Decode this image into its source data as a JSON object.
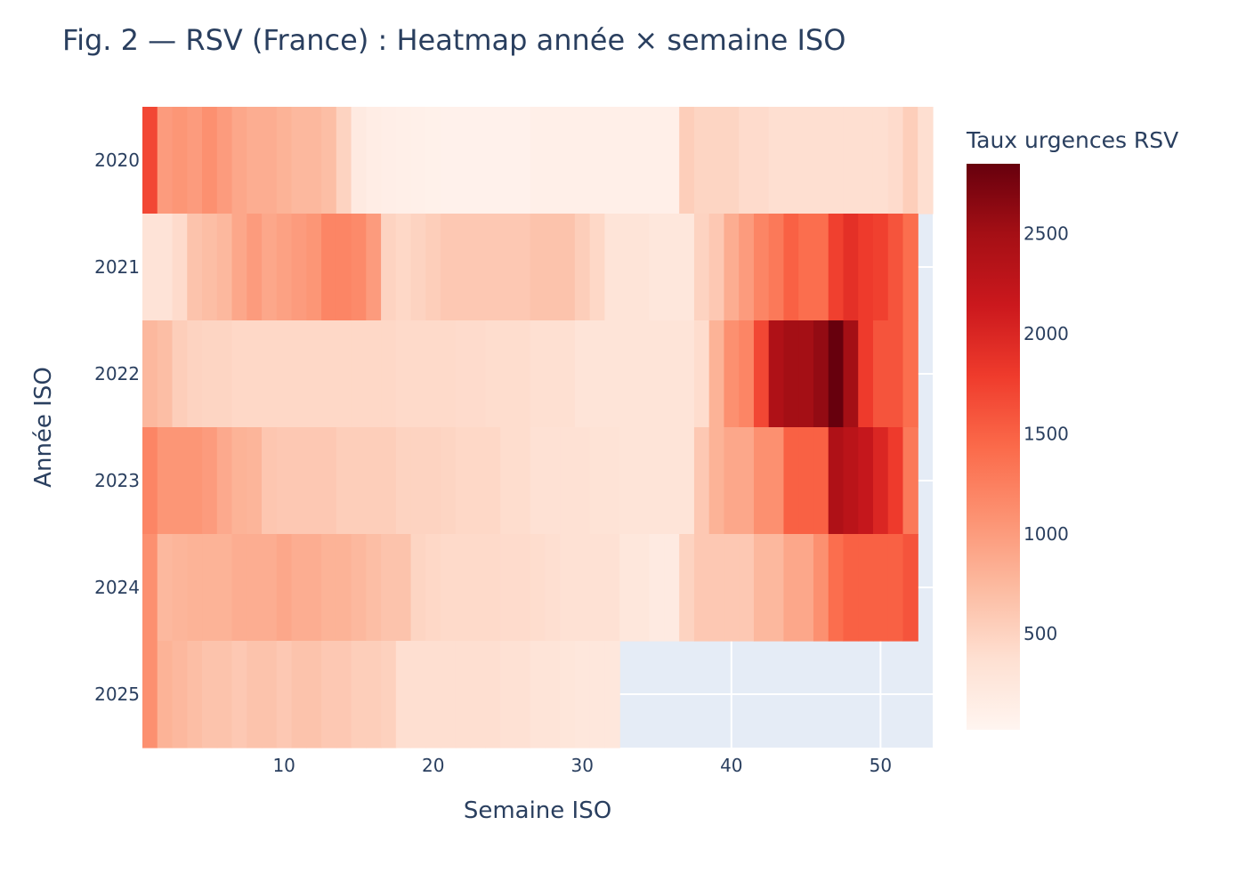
{
  "title": "Fig. 2 — RSV (France) : Heatmap année × semaine ISO",
  "chart_data": {
    "type": "heatmap",
    "title": "Fig. 2 — RSV (France) : Heatmap année × semaine ISO",
    "xlabel": "Semaine ISO",
    "ylabel": "Année ISO",
    "colorbar_title": "Taux urgences RSV",
    "colorscale": "Reds",
    "colorscale_stops": [
      "#fff5f0",
      "#fee0d2",
      "#fcbba1",
      "#fc9272",
      "#fb6a4a",
      "#ef3b2c",
      "#cb181d",
      "#a50f15",
      "#67000d"
    ],
    "zrange": [
      20,
      2850
    ],
    "colorbar_ticks": [
      500,
      1000,
      1500,
      2000,
      2500
    ],
    "x_range": [
      0.5,
      53.5
    ],
    "x_ticks": [
      10,
      20,
      30,
      40,
      50
    ],
    "plot_background": "#e5ecf6",
    "grid_color": "#ffffff",
    "weeks": [
      1,
      2,
      3,
      4,
      5,
      6,
      7,
      8,
      9,
      10,
      11,
      12,
      13,
      14,
      15,
      16,
      17,
      18,
      19,
      20,
      21,
      22,
      23,
      24,
      25,
      26,
      27,
      28,
      29,
      30,
      31,
      32,
      33,
      34,
      35,
      36,
      37,
      38,
      39,
      40,
      41,
      42,
      43,
      44,
      45,
      46,
      47,
      48,
      49,
      50,
      51,
      52,
      53
    ],
    "years": [
      "2020",
      "2021",
      "2022",
      "2023",
      "2024",
      "2025"
    ],
    "z": [
      [
        1700,
        1000,
        1050,
        1000,
        1100,
        1000,
        900,
        850,
        850,
        800,
        750,
        750,
        700,
        500,
        200,
        150,
        130,
        120,
        100,
        90,
        80,
        80,
        80,
        80,
        80,
        80,
        120,
        120,
        120,
        120,
        120,
        120,
        120,
        120,
        120,
        120,
        550,
        480,
        480,
        480,
        420,
        420,
        380,
        380,
        380,
        380,
        380,
        380,
        380,
        380,
        420,
        550,
        380
      ],
      [
        320,
        320,
        420,
        650,
        700,
        750,
        900,
        1000,
        900,
        950,
        1000,
        1050,
        1200,
        1200,
        1150,
        1000,
        500,
        450,
        500,
        550,
        600,
        600,
        600,
        600,
        600,
        600,
        650,
        650,
        650,
        550,
        450,
        300,
        300,
        300,
        250,
        250,
        250,
        500,
        600,
        850,
        1000,
        1200,
        1300,
        1500,
        1400,
        1400,
        1750,
        1900,
        1800,
        1750,
        1600,
        1400,
        null
      ],
      [
        750,
        700,
        550,
        500,
        480,
        480,
        450,
        450,
        450,
        450,
        450,
        450,
        450,
        450,
        450,
        450,
        450,
        430,
        430,
        430,
        430,
        420,
        420,
        400,
        400,
        400,
        370,
        370,
        370,
        300,
        300,
        300,
        300,
        300,
        300,
        300,
        300,
        400,
        800,
        1100,
        1200,
        1700,
        2400,
        2500,
        2500,
        2600,
        2850,
        2500,
        1800,
        1600,
        1600,
        1400,
        null
      ],
      [
        1200,
        1050,
        1050,
        1050,
        1000,
        880,
        800,
        780,
        620,
        600,
        600,
        600,
        600,
        550,
        550,
        550,
        550,
        500,
        500,
        500,
        480,
        450,
        450,
        450,
        400,
        400,
        350,
        350,
        350,
        350,
        330,
        330,
        300,
        300,
        300,
        300,
        300,
        600,
        800,
        900,
        900,
        1100,
        1100,
        1500,
        1500,
        1500,
        2400,
        2300,
        2200,
        2000,
        1800,
        1300,
        null
      ],
      [
        1100,
        750,
        780,
        800,
        800,
        800,
        850,
        850,
        850,
        900,
        850,
        850,
        800,
        800,
        750,
        700,
        650,
        650,
        480,
        450,
        430,
        430,
        430,
        430,
        420,
        420,
        400,
        380,
        350,
        350,
        350,
        350,
        250,
        250,
        200,
        200,
        500,
        600,
        600,
        600,
        600,
        750,
        750,
        900,
        900,
        1100,
        1400,
        1500,
        1500,
        1500,
        1500,
        1600,
        null
      ],
      [
        1100,
        800,
        750,
        700,
        650,
        650,
        600,
        650,
        650,
        600,
        650,
        650,
        600,
        600,
        550,
        550,
        520,
        380,
        380,
        380,
        380,
        380,
        380,
        380,
        350,
        350,
        300,
        300,
        280,
        250,
        250,
        250,
        null,
        null,
        null,
        null,
        null,
        null,
        null,
        null,
        null,
        null,
        null,
        null,
        null,
        null,
        null,
        null,
        null,
        null,
        null,
        null,
        null
      ]
    ]
  }
}
